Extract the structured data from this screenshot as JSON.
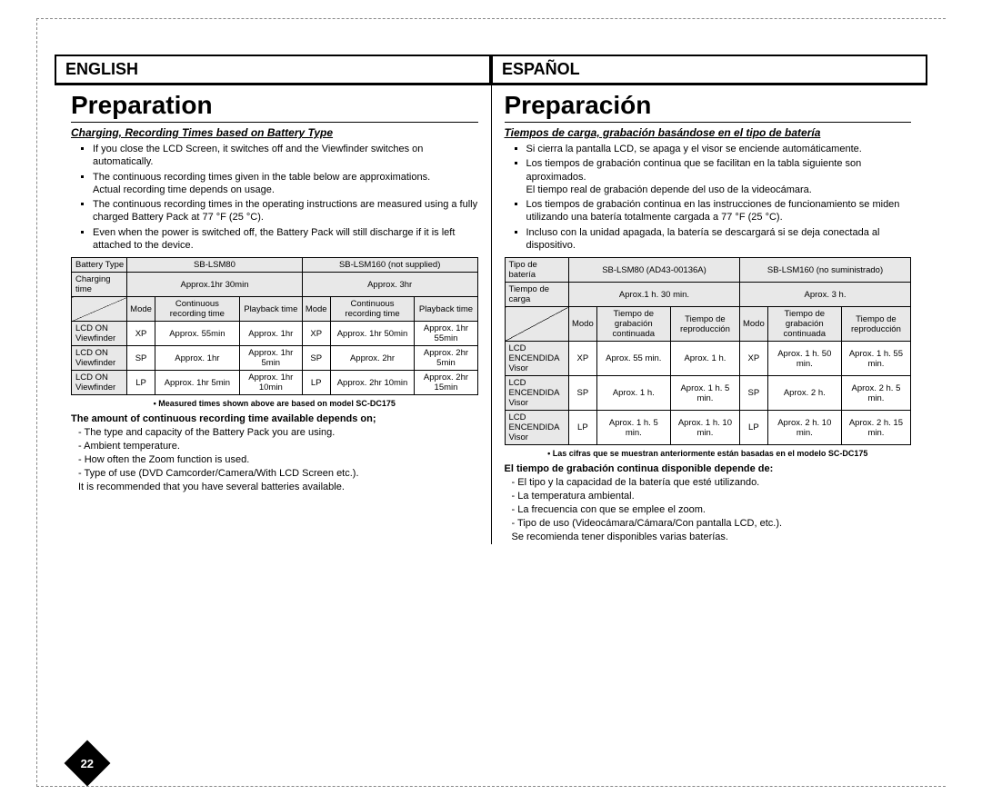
{
  "pageNumber": "22",
  "english": {
    "langLabel": "ENGLISH",
    "title": "Preparation",
    "subheading": "Charging, Recording Times based on Battery Type",
    "bullets": [
      "If you close the LCD Screen, it switches off and the Viewfinder switches on automatically.",
      "The continuous recording times given in the table below are approximations.\nActual recording time depends on usage.",
      "The continuous recording times in the operating instructions are measured using a fully charged Battery Pack at 77 °F (25 °C).",
      "Even when the power is switched off, the Battery Pack will still discharge if it is left attached to the device."
    ],
    "table": {
      "headers": {
        "batteryType": "Battery Type",
        "col1": "SB-LSM80",
        "col2": "SB-LSM160 (not supplied)",
        "chargingTime": "Charging time",
        "charge1": "Approx.1hr 30min",
        "charge2": "Approx. 3hr",
        "mode": "Mode",
        "contRec": "Continuous recording time",
        "playback": "Playback time"
      },
      "rows": [
        {
          "label1": "LCD ON",
          "label2": "Viewfinder",
          "mode": "XP",
          "c1a": "Approx. 55min",
          "c1b": "Approx. 1hr",
          "c2a": "Approx. 1hr 50min",
          "c2b": "Approx. 1hr 55min"
        },
        {
          "label1": "LCD ON",
          "label2": "Viewfinder",
          "mode": "SP",
          "c1a": "Approx. 1hr",
          "c1b": "Approx. 1hr 5min",
          "c2a": "Approx. 2hr",
          "c2b": "Approx. 2hr 5min"
        },
        {
          "label1": "LCD ON",
          "label2": "Viewfinder",
          "mode": "LP",
          "c1a": "Approx. 1hr 5min",
          "c1b": "Approx. 1hr 10min",
          "c2a": "Approx. 2hr 10min",
          "c2b": "Approx. 2hr 15min"
        }
      ]
    },
    "tableFootnote": "• Measured times shown above are based on model SC-DC175",
    "dependsHeading": "The amount of continuous recording time available depends on;",
    "dependsList": [
      "The type and capacity of the Battery Pack you are using.",
      "Ambient temperature.",
      "How often the Zoom function is used.",
      "Type of use (DVD Camcorder/Camera/With LCD Screen etc.).\nIt is recommended that you have several batteries available."
    ]
  },
  "spanish": {
    "langLabel": "ESPAÑOL",
    "title": "Preparación",
    "subheading": "Tiempos de carga, grabación basándose en el tipo de batería",
    "bullets": [
      "Si cierra la pantalla LCD, se apaga y el visor se enciende automáticamente.",
      "Los tiempos de grabación continua que se facilitan en la tabla siguiente son aproximados.\nEl tiempo real de grabación depende del uso de la videocámara.",
      "Los tiempos de grabación continua en las instrucciones de funcionamiento se miden utilizando una batería totalmente cargada a 77 °F (25 °C).",
      "Incluso con la unidad apagada, la batería se descargará si se deja conectada al dispositivo."
    ],
    "table": {
      "headers": {
        "batteryType": "Tipo de batería",
        "col1": "SB-LSM80 (AD43-00136A)",
        "col2": "SB-LSM160 (no suministrado)",
        "chargingTime": "Tiempo de carga",
        "charge1": "Aprox.1 h. 30 min.",
        "charge2": "Aprox. 3 h.",
        "mode": "Modo",
        "contRec": "Tiempo de grabación continuada",
        "playback": "Tiempo de reproducción"
      },
      "rows": [
        {
          "label1": "LCD ENCENDIDA",
          "label2": "Visor",
          "mode": "XP",
          "c1a": "Aprox. 55 min.",
          "c1b": "Aprox. 1 h.",
          "c2a": "Aprox. 1 h. 50 min.",
          "c2b": "Aprox. 1 h. 55 min."
        },
        {
          "label1": "LCD ENCENDIDA",
          "label2": "Visor",
          "mode": "SP",
          "c1a": "Aprox. 1 h.",
          "c1b": "Aprox. 1 h. 5 min.",
          "c2a": "Aprox. 2 h.",
          "c2b": "Aprox. 2 h. 5 min."
        },
        {
          "label1": "LCD ENCENDIDA",
          "label2": "Visor",
          "mode": "LP",
          "c1a": "Aprox. 1 h. 5 min.",
          "c1b": "Aprox. 1 h. 10 min.",
          "c2a": "Aprox. 2 h. 10 min.",
          "c2b": "Aprox. 2 h. 15 min."
        }
      ]
    },
    "tableFootnote": "• Las cifras que se muestran anteriormente están basadas en el modelo SC-DC175",
    "dependsHeading": "El tiempo de grabación continua disponible depende de:",
    "dependsList": [
      "El tipo y la capacidad de la batería que esté utilizando.",
      "La temperatura ambiental.",
      "La frecuencia con que se emplee el zoom.",
      "Tipo de uso (Videocámara/Cámara/Con pantalla LCD, etc.).\nSe recomienda tener disponibles varias baterías."
    ]
  }
}
